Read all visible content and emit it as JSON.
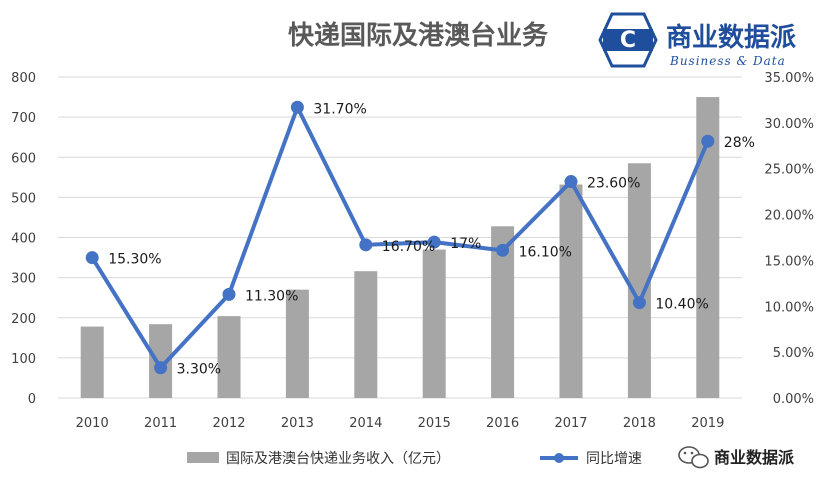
{
  "brand": {
    "name_cn": "商业数据派",
    "name_en": "Business & Data",
    "logo_letter": "C",
    "watermark_text": "商业数据派"
  },
  "colors": {
    "bar": "#a6a6a6",
    "line": "#4472c4",
    "logo": "#1f4e9c",
    "grid": "#d9d9d9"
  },
  "chart_data": {
    "type": "bar+line",
    "title": "快递国际及港澳台业务",
    "categories": [
      "2010",
      "2011",
      "2012",
      "2013",
      "2014",
      "2015",
      "2016",
      "2017",
      "2018",
      "2019"
    ],
    "series": [
      {
        "name": "国际及港澳台快递业务收入（亿元）",
        "type": "bar",
        "axis": "left",
        "values": [
          178,
          184,
          204,
          270,
          316,
          370,
          428,
          532,
          585,
          750
        ]
      },
      {
        "name": "同比增速",
        "type": "line",
        "axis": "right",
        "values": [
          15.3,
          3.3,
          11.3,
          31.7,
          16.7,
          17,
          16.1,
          23.6,
          10.4,
          28
        ],
        "labels": [
          "15.30%",
          "3.30%",
          "11.30%",
          "31.70%",
          "16.70%",
          "17%",
          "16.10%",
          "23.60%",
          "10.40%",
          "28%"
        ]
      }
    ],
    "y_left": {
      "min": 0,
      "max": 800,
      "step": 100,
      "ticks": [
        "0",
        "100",
        "200",
        "300",
        "400",
        "500",
        "600",
        "700",
        "800"
      ]
    },
    "y_right": {
      "min": 0,
      "max": 35,
      "step": 5,
      "ticks": [
        "0.00%",
        "5.00%",
        "10.00%",
        "15.00%",
        "20.00%",
        "25.00%",
        "30.00%",
        "35.00%"
      ]
    },
    "grid": true,
    "legend": "bottom"
  }
}
